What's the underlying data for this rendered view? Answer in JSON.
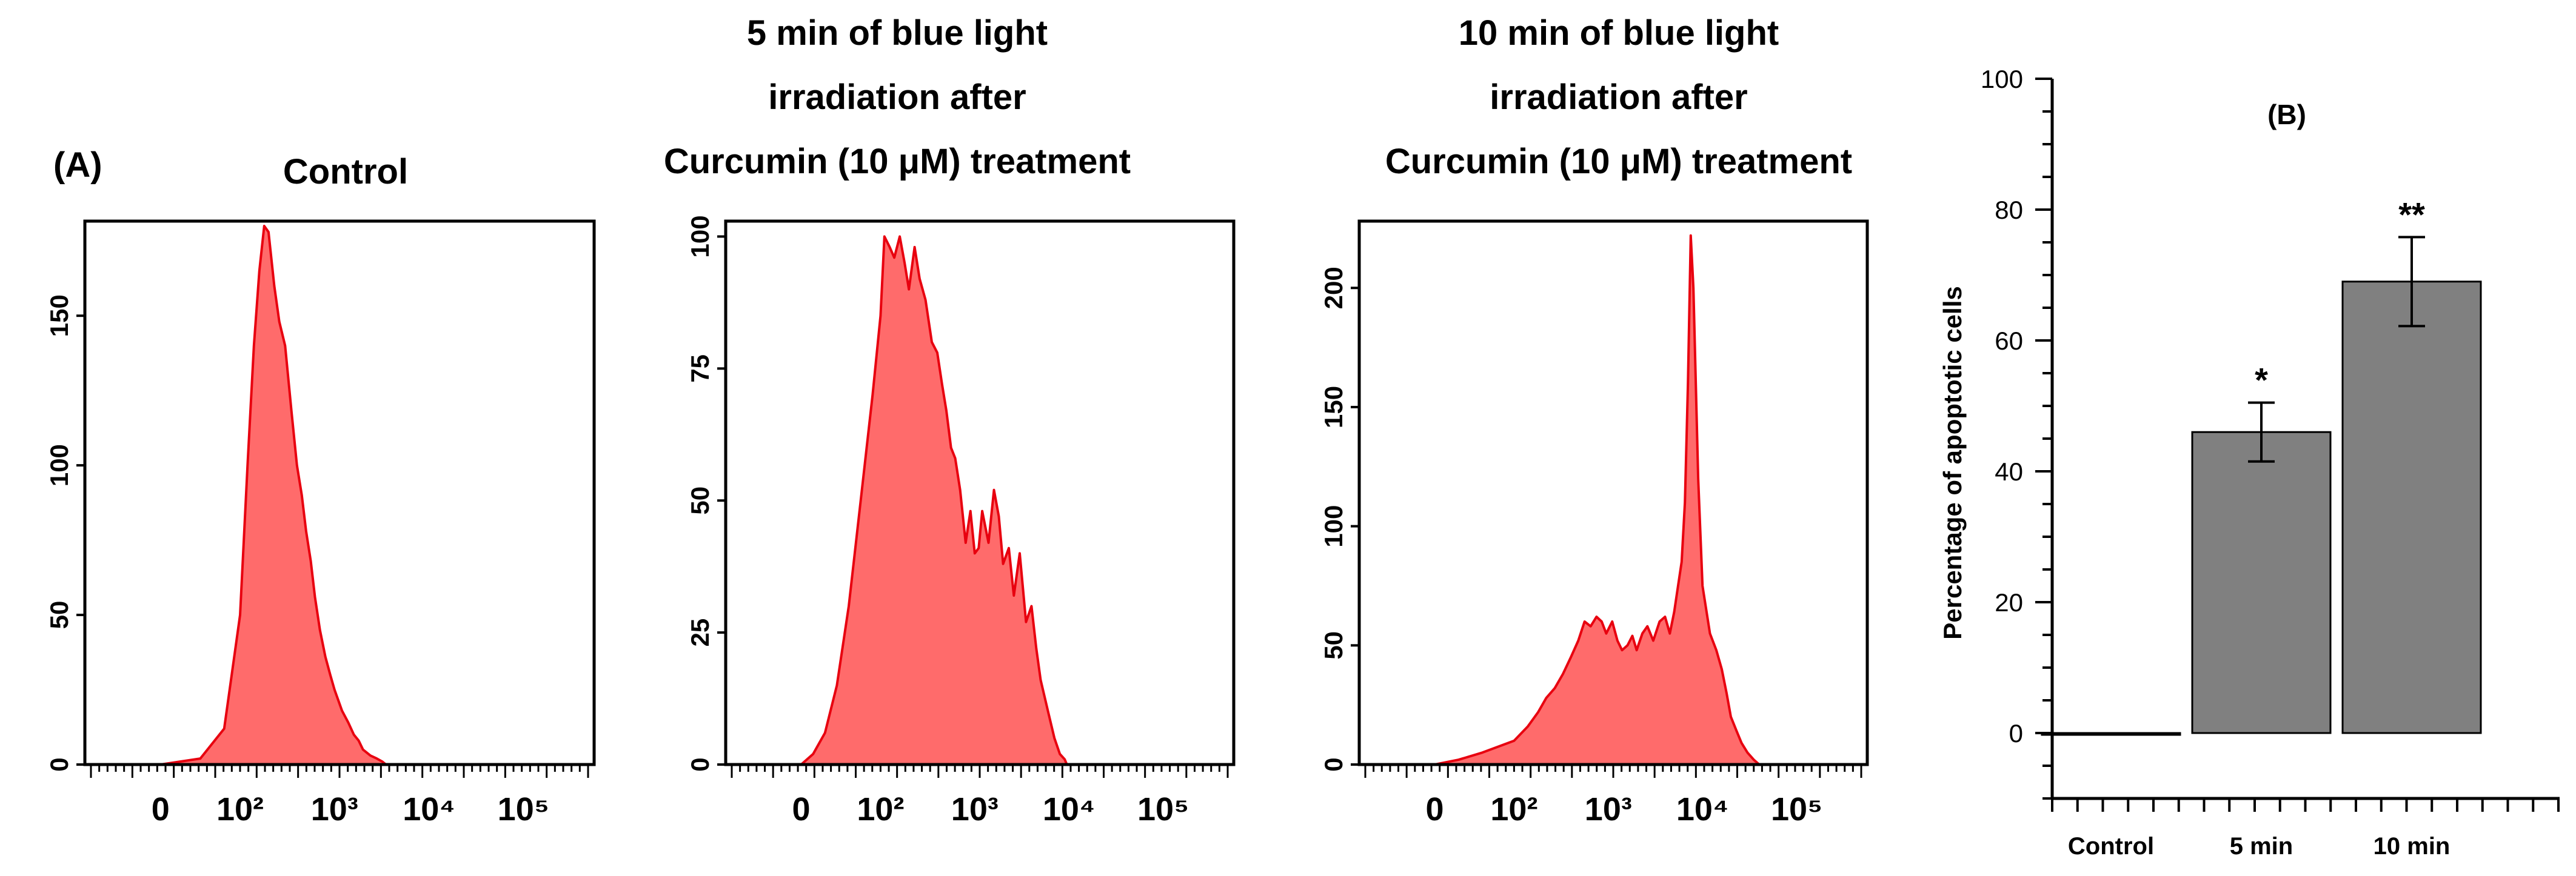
{
  "panel_a_label": "(A)",
  "panel_b_label": "(B)",
  "chart_data": [
    {
      "type": "area",
      "title": [
        "Control"
      ],
      "x_scale": "log",
      "x_ticks": [
        "0",
        "10²",
        "10³",
        "10⁴",
        "10⁵"
      ],
      "y_ticks": [
        "0",
        "50",
        "100",
        "150"
      ],
      "ylim": [
        0,
        180
      ],
      "color": "#ff6b6b",
      "edge_color": "#e8000f",
      "x": [
        0,
        50,
        80,
        100,
        120,
        140,
        160,
        180,
        200,
        230,
        260,
        300,
        350,
        400,
        450,
        500,
        560,
        620,
        700,
        800,
        900,
        1000,
        1200,
        1400,
        1600,
        1800,
        2000,
        2400,
        2800,
        3200,
        3500
      ],
      "y": [
        0,
        2,
        12,
        50,
        100,
        140,
        165,
        180,
        178,
        160,
        148,
        140,
        118,
        100,
        90,
        78,
        68,
        56,
        45,
        36,
        30,
        25,
        18,
        14,
        10,
        8,
        5,
        3,
        2,
        1,
        0
      ]
    },
    {
      "type": "area",
      "title": [
        "5 min of blue light",
        "irradiation  after",
        "Curcumin  (10 μM) treatment"
      ],
      "x_scale": "log",
      "x_ticks": [
        "0",
        "10²",
        "10³",
        "10⁴",
        "10⁵"
      ],
      "y_ticks": [
        "0",
        "25",
        "50",
        "75",
        "100"
      ],
      "ylim": [
        0,
        102
      ],
      "color": "#ff6b6b",
      "edge_color": "#e8000f",
      "x": [
        0,
        15,
        30,
        45,
        60,
        75,
        90,
        100,
        110,
        125,
        140,
        160,
        180,
        200,
        230,
        260,
        300,
        350,
        400,
        450,
        500,
        560,
        620,
        700,
        800,
        900,
        1000,
        1100,
        1200,
        1400,
        1600,
        1800,
        2000,
        2300,
        2600,
        3000,
        3500,
        4000,
        4500,
        5000,
        6000,
        7000,
        8000,
        9000,
        9500
      ],
      "y": [
        0,
        2,
        6,
        15,
        30,
        50,
        70,
        85,
        100,
        98,
        96,
        100,
        95,
        90,
        98,
        92,
        88,
        80,
        78,
        72,
        67,
        60,
        58,
        52,
        42,
        48,
        40,
        41,
        48,
        42,
        52,
        47,
        38,
        41,
        32,
        40,
        27,
        30,
        22,
        16,
        10,
        5,
        2,
        1,
        0
      ]
    },
    {
      "type": "area",
      "title": [
        "10 min of blue light",
        "irradiation  after",
        "Curcumin  (10 μM) treatment"
      ],
      "x_scale": "log",
      "x_ticks": [
        "0",
        "10²",
        "10³",
        "10⁴",
        "10⁵"
      ],
      "y_ticks": [
        "0",
        "50",
        "100",
        "150",
        "200"
      ],
      "ylim": [
        0,
        226
      ],
      "color": "#ff6b6b",
      "edge_color": "#e8000f",
      "x": [
        0,
        30,
        60,
        100,
        140,
        180,
        220,
        270,
        330,
        400,
        480,
        560,
        650,
        750,
        850,
        950,
        1100,
        1250,
        1400,
        1600,
        1800,
        2000,
        2300,
        2600,
        3000,
        3500,
        4000,
        4500,
        5000,
        5500,
        6000,
        6500,
        7000,
        7500,
        8000,
        9000,
        10000,
        12000,
        14000,
        16000,
        18000,
        20000,
        23000,
        26000,
        30000,
        35000,
        40000
      ],
      "y": [
        0,
        2,
        5,
        10,
        16,
        22,
        28,
        32,
        38,
        45,
        52,
        60,
        58,
        62,
        60,
        55,
        60,
        52,
        48,
        50,
        54,
        48,
        55,
        58,
        52,
        60,
        62,
        55,
        64,
        75,
        85,
        110,
        160,
        222,
        200,
        120,
        75,
        55,
        48,
        40,
        30,
        20,
        14,
        9,
        5,
        2,
        0
      ]
    },
    {
      "type": "bar",
      "categories": [
        "Control",
        "5 min",
        "10 min"
      ],
      "values": [
        0,
        46,
        69
      ],
      "error": [
        0,
        4.5,
        6.8
      ],
      "annotations": [
        "",
        "*",
        "**"
      ],
      "ylabel": "Percentage of apoptotic cells",
      "y_ticks": [
        "0",
        "20",
        "40",
        "60",
        "80",
        "100"
      ],
      "ylim": [
        -10,
        100
      ],
      "color": "#808080"
    }
  ]
}
